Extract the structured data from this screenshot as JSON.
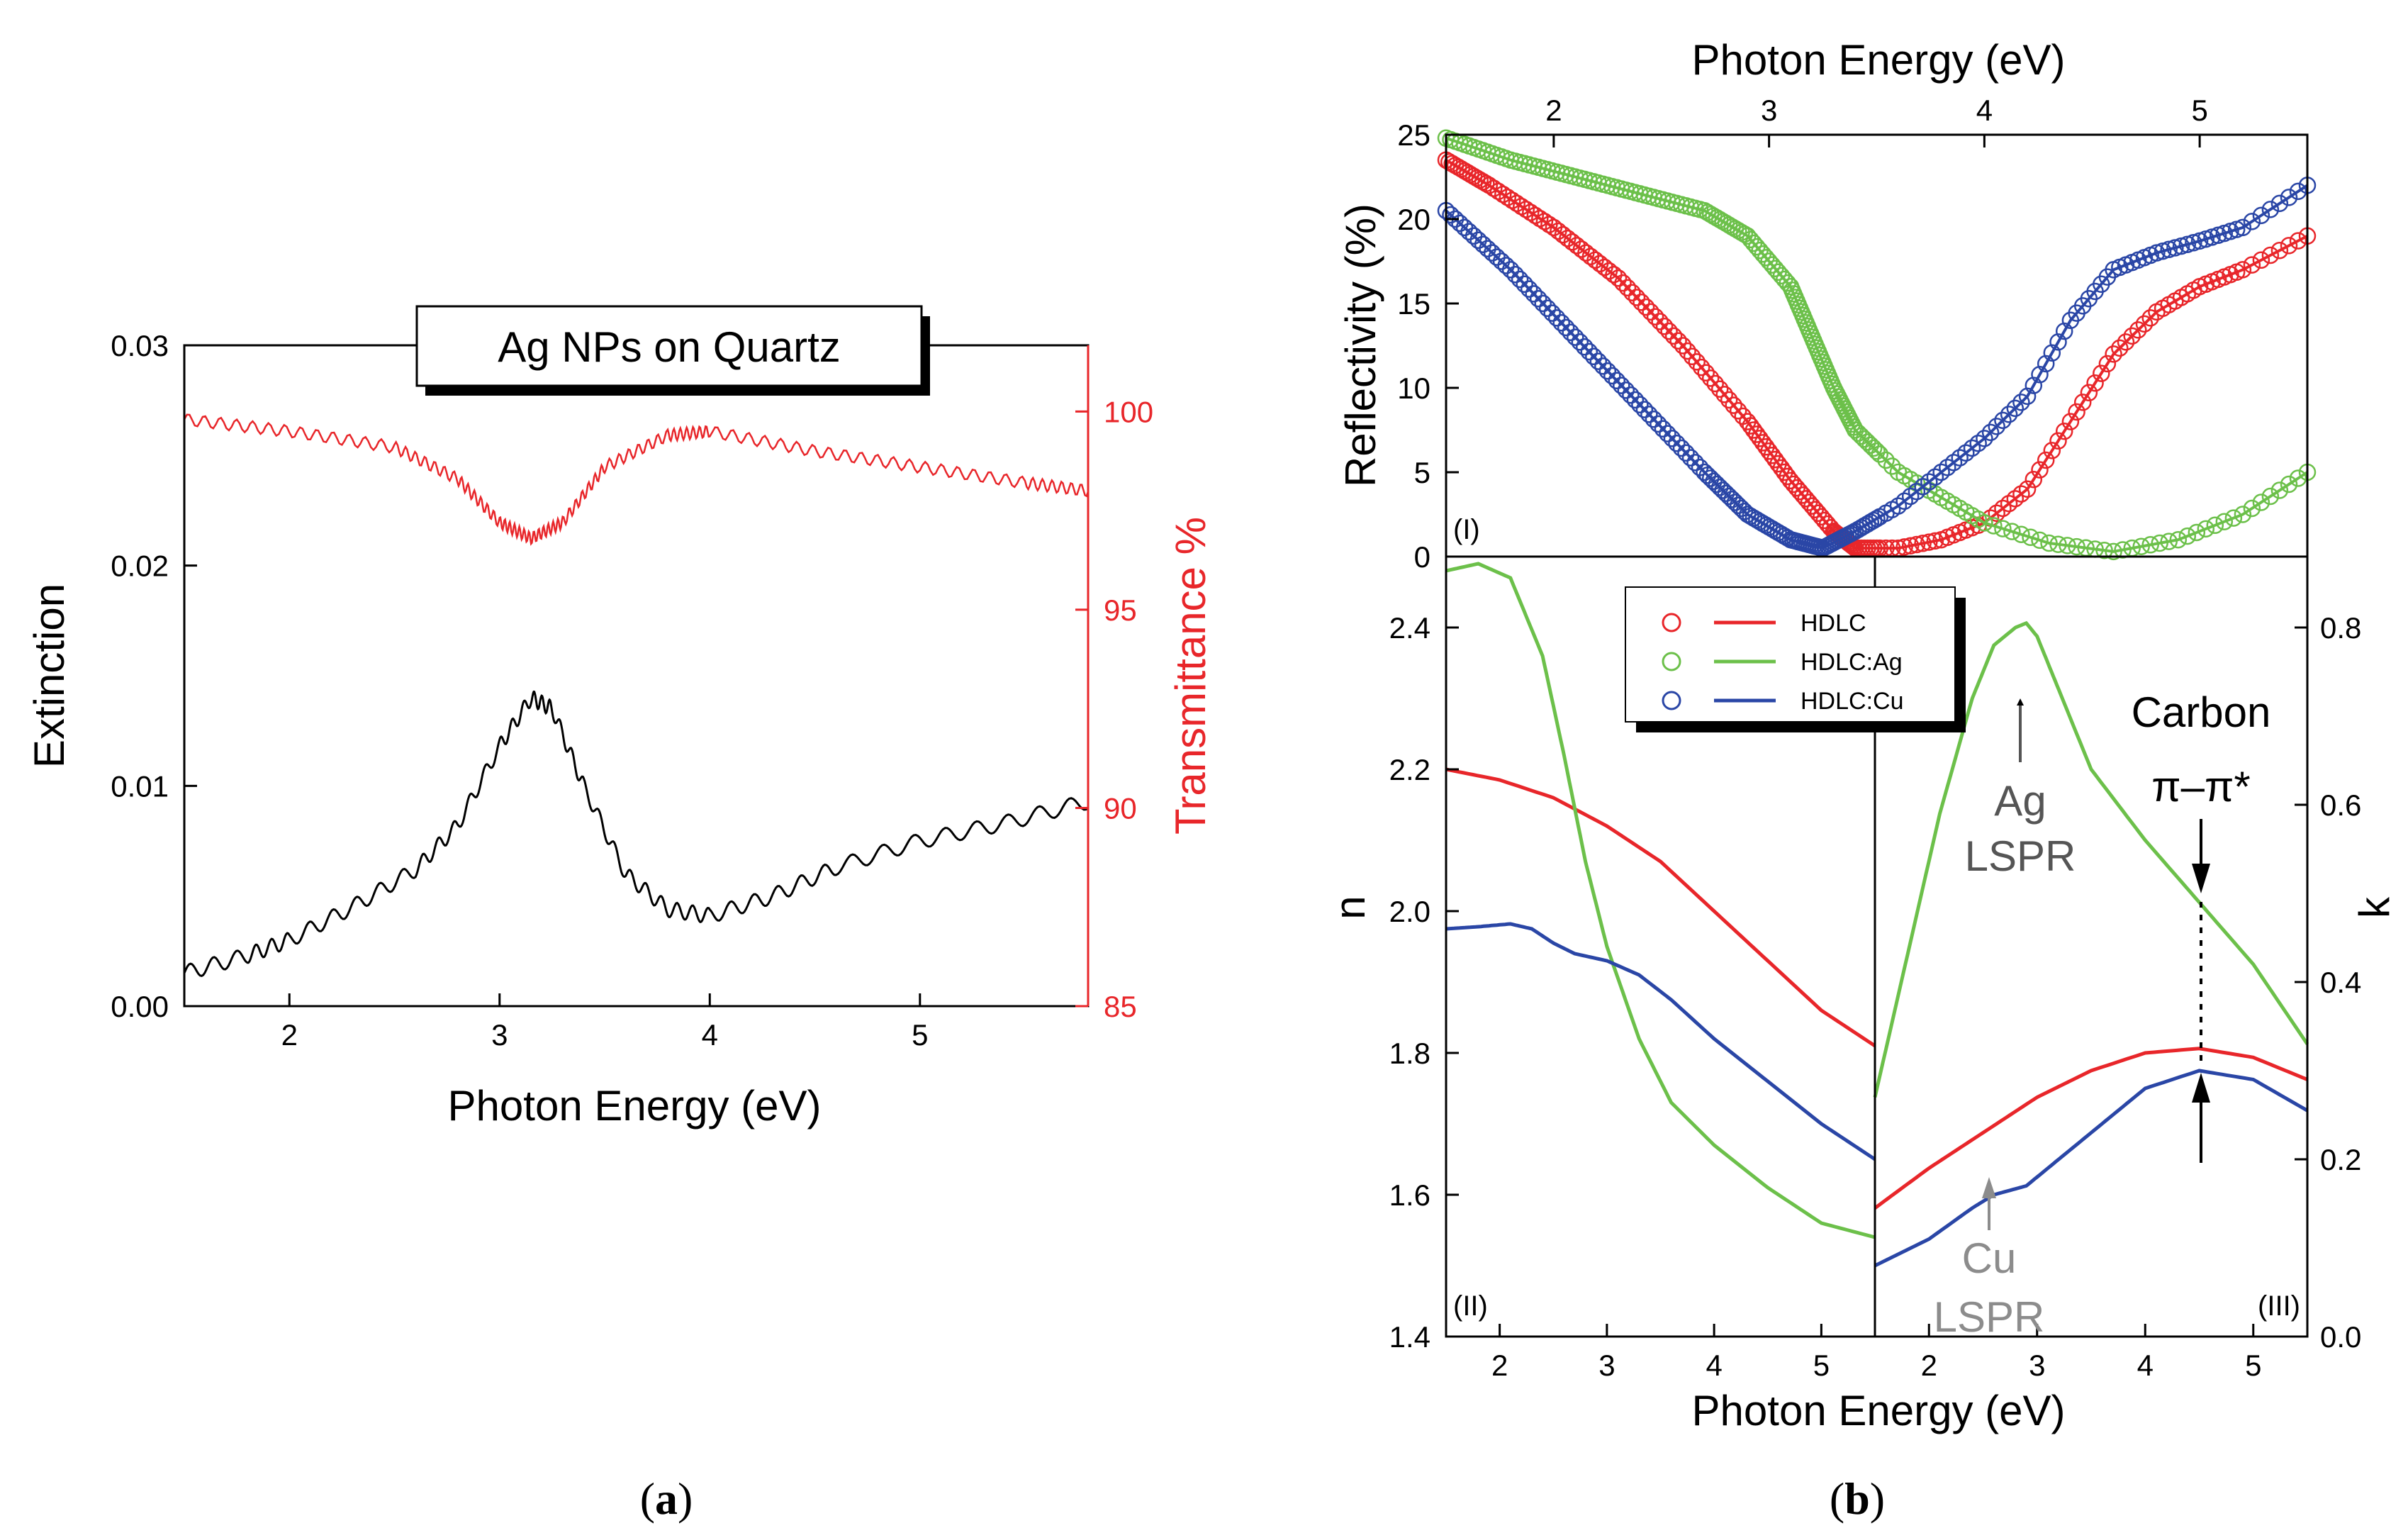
{
  "colors": {
    "black": "#000000",
    "red": "#e8262a",
    "green": "#6cc04a",
    "blue": "#2a46a6",
    "gray": "#8c8c8c",
    "darkgray": "#555555"
  },
  "chart_data": [
    {
      "id": "a",
      "type": "line",
      "caption_open": "(",
      "caption_letter": "a",
      "caption_close": ")",
      "title": "Ag NPs on Quartz",
      "xlabel": "Photon Energy (eV)",
      "ylabel": "Extinction",
      "y2label": "Transmittance %",
      "xlim": [
        1.5,
        5.8
      ],
      "ylim": [
        0,
        0.03
      ],
      "y2lim": [
        85,
        101.67
      ],
      "xticks": [
        "2",
        "3",
        "4",
        "5"
      ],
      "yticks": [
        "0.00",
        "0.01",
        "0.02",
        "0.03"
      ],
      "y2ticks": [
        "85",
        "90",
        "95",
        "100"
      ],
      "series": [
        {
          "name": "Extinction",
          "axis": "left",
          "color": "black",
          "x": [
            1.5,
            1.8,
            2.0,
            2.3,
            2.6,
            2.8,
            3.0,
            3.15,
            3.25,
            3.4,
            3.6,
            3.8,
            4.0,
            4.3,
            4.6,
            5.0,
            5.4,
            5.8
          ],
          "y": [
            0.0015,
            0.0023,
            0.003,
            0.0045,
            0.0062,
            0.0082,
            0.0118,
            0.014,
            0.0135,
            0.01,
            0.006,
            0.0044,
            0.0041,
            0.005,
            0.0063,
            0.0075,
            0.0083,
            0.0093
          ]
        },
        {
          "name": "Transmittance",
          "axis": "right",
          "color": "red",
          "x": [
            1.5,
            2.0,
            2.5,
            2.8,
            3.0,
            3.15,
            3.3,
            3.5,
            3.8,
            4.0,
            4.5,
            5.0,
            5.5,
            5.8
          ],
          "y": [
            99.8,
            99.5,
            99.1,
            98.3,
            97.2,
            96.8,
            97.2,
            98.6,
            99.4,
            99.5,
            99.0,
            98.6,
            98.2,
            98.0
          ]
        }
      ]
    },
    {
      "id": "b-I",
      "type": "scatter",
      "caption_open": "(",
      "caption_letter": "b",
      "caption_close": ")",
      "panel_label": "(I)",
      "xlabel_top": "Photon Energy (eV)",
      "ylabel": "Reflectivity (%)",
      "xlim": [
        1.5,
        5.5
      ],
      "ylim": [
        0,
        25
      ],
      "xticks": [
        "2",
        "3",
        "4",
        "5"
      ],
      "yticks": [
        "0",
        "5",
        "10",
        "15",
        "20",
        "25"
      ],
      "series": [
        {
          "name": "HDLC",
          "color": "red",
          "x": [
            1.5,
            1.7,
            2.0,
            2.3,
            2.6,
            2.9,
            3.1,
            3.3,
            3.4,
            3.6,
            3.8,
            4.0,
            4.2,
            4.4,
            4.6,
            4.8,
            5.0,
            5.2,
            5.5
          ],
          "y": [
            23.5,
            22,
            19.5,
            16.5,
            12.5,
            8,
            4.5,
            1.5,
            0.5,
            0.5,
            1,
            2,
            4,
            8,
            12,
            14.5,
            16,
            17,
            19
          ]
        },
        {
          "name": "HDLC:Ag",
          "color": "green",
          "x": [
            1.5,
            1.8,
            2.1,
            2.4,
            2.7,
            2.9,
            3.1,
            3.2,
            3.3,
            3.4,
            3.6,
            3.8,
            4.0,
            4.3,
            4.6,
            4.9,
            5.2,
            5.5
          ],
          "y": [
            24.8,
            23.5,
            22.5,
            21.5,
            20.5,
            19,
            16,
            13,
            10,
            7.5,
            5,
            3.5,
            2,
            0.8,
            0.3,
            1,
            2.5,
            5
          ]
        },
        {
          "name": "HDLC:Cu",
          "color": "blue",
          "x": [
            1.5,
            1.8,
            2.1,
            2.4,
            2.7,
            2.9,
            3.1,
            3.25,
            3.4,
            3.6,
            3.8,
            4.0,
            4.2,
            4.4,
            4.6,
            4.8,
            5.0,
            5.2,
            5.5
          ],
          "y": [
            20.5,
            17,
            13,
            9,
            5,
            2.5,
            1,
            0.5,
            1.5,
            3,
            5,
            7,
            9.5,
            14,
            17,
            18,
            18.7,
            19.5,
            22
          ]
        }
      ]
    },
    {
      "id": "b-II",
      "type": "line",
      "panel_label": "(II)",
      "ylabel": "n",
      "xlim": [
        1.5,
        5.5
      ],
      "ylim": [
        1.4,
        2.5
      ],
      "xticks": [
        "2",
        "3",
        "4",
        "5"
      ],
      "yticks": [
        "1.4",
        "1.6",
        "1.8",
        "2.0",
        "2.2",
        "2.4"
      ],
      "series": [
        {
          "name": "HDLC",
          "color": "red",
          "x": [
            1.5,
            2.0,
            2.5,
            3.0,
            3.5,
            4.0,
            4.5,
            5.0,
            5.5
          ],
          "y": [
            2.2,
            2.185,
            2.16,
            2.12,
            2.07,
            2.0,
            1.93,
            1.86,
            1.81
          ]
        },
        {
          "name": "HDLC:Ag",
          "color": "green",
          "x": [
            1.5,
            1.8,
            2.1,
            2.4,
            2.6,
            2.8,
            3.0,
            3.3,
            3.6,
            4.0,
            4.5,
            5.0,
            5.5
          ],
          "y": [
            2.48,
            2.49,
            2.47,
            2.36,
            2.22,
            2.07,
            1.95,
            1.82,
            1.73,
            1.67,
            1.61,
            1.56,
            1.54
          ]
        },
        {
          "name": "HDLC:Cu",
          "color": "blue",
          "x": [
            1.5,
            1.8,
            2.1,
            2.3,
            2.5,
            2.7,
            3.0,
            3.3,
            3.6,
            4.0,
            4.5,
            5.0,
            5.5
          ],
          "y": [
            1.975,
            1.978,
            1.982,
            1.975,
            1.955,
            1.94,
            1.93,
            1.91,
            1.875,
            1.82,
            1.76,
            1.7,
            1.65
          ]
        }
      ]
    },
    {
      "id": "b-III",
      "type": "line",
      "panel_label": "(III)",
      "y2label": "k",
      "xlim": [
        1.5,
        5.5
      ],
      "y2lim": [
        0,
        0.88
      ],
      "xticks": [
        "2",
        "3",
        "4",
        "5"
      ],
      "y2ticks": [
        "0.0",
        "0.2",
        "0.4",
        "0.6",
        "0.8"
      ],
      "series": [
        {
          "name": "HDLC",
          "color": "red",
          "x": [
            1.5,
            2.0,
            2.5,
            3.0,
            3.5,
            4.0,
            4.5,
            5.0,
            5.5
          ],
          "y": [
            0.145,
            0.19,
            0.23,
            0.27,
            0.3,
            0.32,
            0.325,
            0.315,
            0.29
          ]
        },
        {
          "name": "HDLC:Ag",
          "color": "green",
          "x": [
            1.5,
            1.8,
            2.1,
            2.4,
            2.6,
            2.8,
            2.9,
            3.0,
            3.2,
            3.5,
            4.0,
            4.5,
            5.0,
            5.5
          ],
          "y": [
            0.27,
            0.43,
            0.59,
            0.72,
            0.78,
            0.8,
            0.805,
            0.79,
            0.73,
            0.64,
            0.56,
            0.49,
            0.42,
            0.33
          ]
        },
        {
          "name": "HDLC:Cu",
          "color": "blue",
          "x": [
            1.5,
            2.0,
            2.4,
            2.6,
            2.9,
            3.2,
            3.6,
            4.0,
            4.5,
            5.0,
            5.5
          ],
          "y": [
            0.08,
            0.11,
            0.145,
            0.16,
            0.17,
            0.2,
            0.24,
            0.28,
            0.3,
            0.29,
            0.255
          ]
        }
      ]
    }
  ],
  "legend": {
    "items": [
      {
        "label": "HDLC",
        "color": "red"
      },
      {
        "label": "HDLC:Ag",
        "color": "green"
      },
      {
        "label": "HDLC:Cu",
        "color": "blue"
      }
    ]
  },
  "annotations": {
    "ag_lspr_line1": "Ag",
    "ag_lspr_line2": "LSPR",
    "cu_lspr_line1": "Cu",
    "cu_lspr_line2": "LSPR",
    "carbon_line1": "Carbon",
    "carbon_line2": "π–π*"
  }
}
